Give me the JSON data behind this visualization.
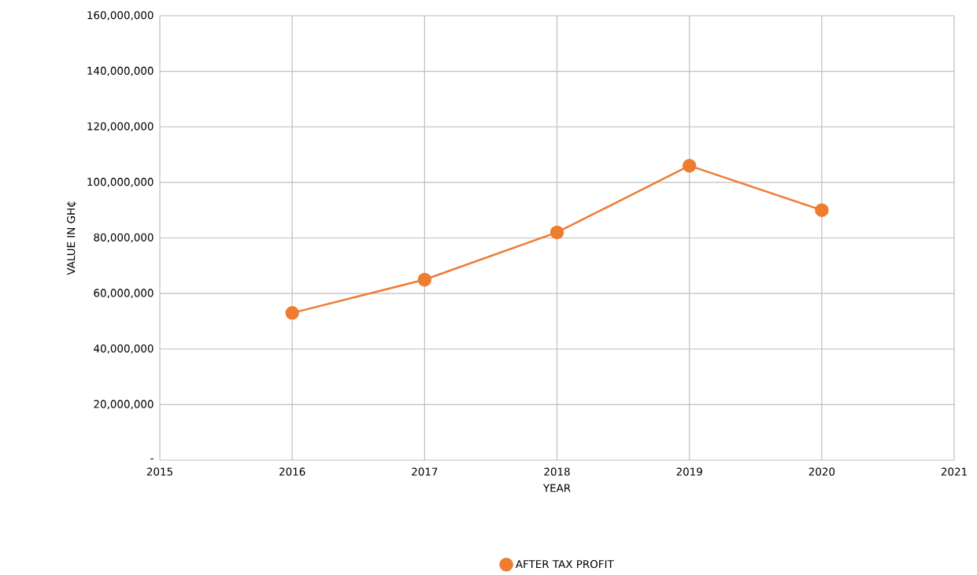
{
  "chart_data": {
    "type": "line",
    "xlabel": "YEAR",
    "ylabel": "VALUE IN GH₵",
    "x": [
      2016,
      2017,
      2018,
      2019,
      2020
    ],
    "series": [
      {
        "name": "AFTER TAX PROFIT",
        "color": "#ed7d31",
        "values": [
          53000000,
          65000000,
          82000000,
          106000000,
          90000000
        ]
      }
    ],
    "xlim": [
      2015,
      2021
    ],
    "xticks": [
      2015,
      2016,
      2017,
      2018,
      2019,
      2020,
      2021
    ],
    "ylim": [
      0,
      160000000
    ],
    "yticks": [
      {
        "value": 0,
        "label": "-"
      },
      {
        "value": 20000000,
        "label": "20,000,000"
      },
      {
        "value": 40000000,
        "label": "40,000,000"
      },
      {
        "value": 60000000,
        "label": "60,000,000"
      },
      {
        "value": 80000000,
        "label": "80,000,000"
      },
      {
        "value": 100000000,
        "label": "100,000,000"
      },
      {
        "value": 120000000,
        "label": "120,000,000"
      },
      {
        "value": 140000000,
        "label": "140,000,000"
      },
      {
        "value": 160000000,
        "label": "160,000,000"
      }
    ],
    "grid": true,
    "legend": "bottom",
    "marker": "circle",
    "line_style": "solid"
  }
}
